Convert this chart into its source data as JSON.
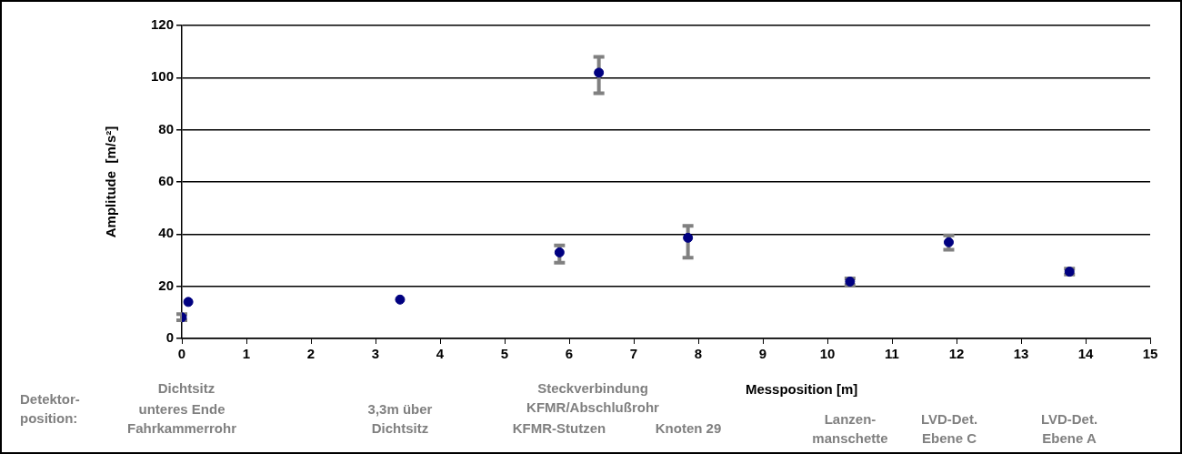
{
  "chart_data": {
    "type": "scatter",
    "xlabel": "Messposition [m]",
    "ylabel": "Amplitude  [m/s²]",
    "x": [
      0.0,
      0.1,
      3.38,
      5.85,
      6.46,
      7.84,
      10.35,
      11.88,
      13.75
    ],
    "values": [
      8.1,
      14.0,
      14.9,
      33.0,
      101.9,
      38.6,
      21.8,
      36.9,
      25.6
    ],
    "errors": [
      [
        7.0,
        9.3
      ],
      null,
      null,
      [
        29.0,
        35.7
      ],
      [
        94.0,
        108.0
      ],
      [
        31.0,
        43.2
      ],
      [
        20.5,
        23.0
      ],
      [
        34.0,
        39.5
      ],
      [
        24.5,
        26.8
      ]
    ],
    "color": "#000080",
    "marker": "circle",
    "xlim": [
      0,
      15
    ],
    "xticks": [
      0,
      1,
      2,
      3,
      4,
      5,
      6,
      7,
      8,
      9,
      10,
      11,
      12,
      13,
      14,
      15
    ],
    "ylim": [
      0,
      120
    ],
    "yticks": [
      0,
      20,
      40,
      60,
      80,
      100,
      120
    ],
    "grid": "y",
    "legend": false,
    "annotations": [
      "Detektor-\nposition:",
      "Dichtsitz",
      "unteres Ende\nFahrkammerrohr",
      "3,3m über\nDichtsitz",
      "Steckverbindung\nKFMR/Abschlußrohr",
      "KFMR-Stutzen",
      "Knoten 29",
      "Lanzen-\nmanschette",
      "LVD-Det.\nEbene C",
      "LVD-Det.\nEbene A"
    ]
  }
}
